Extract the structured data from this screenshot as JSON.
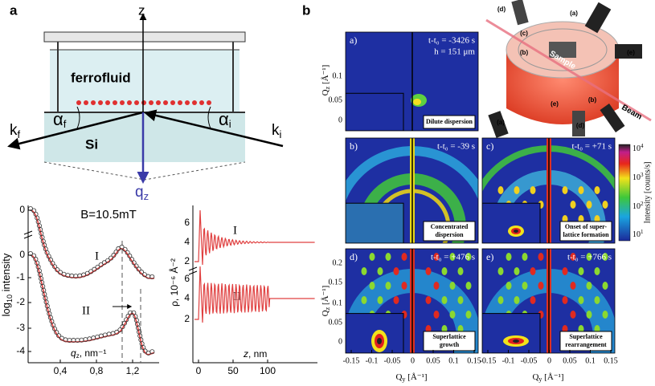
{
  "panel_a": {
    "label": "a",
    "z_axis": "z",
    "liquid": "ferrofluid",
    "substrate": "Si",
    "k_f": {
      "main": "k",
      "sub": "f"
    },
    "alpha_f": {
      "main": "α",
      "sub": "f"
    },
    "alpha_i": {
      "main": "α",
      "sub": "i"
    },
    "k_i": {
      "main": "k",
      "sub": "i"
    },
    "q_z": {
      "main": "q",
      "sub": "z"
    }
  },
  "reflectivity": {
    "title": "B=10.5mT",
    "y_label": {
      "main": "log",
      "sub": "10",
      "rest": " intensity"
    },
    "x_label": {
      "main": "q",
      "sub": "z",
      "rest": ", nm⁻¹"
    },
    "yticks": [
      "0",
      "0",
      "-1",
      "-2",
      "-3",
      "-4"
    ],
    "xticks": [
      "0,4",
      "0,8",
      "1,2"
    ],
    "curves": [
      "I",
      "II"
    ]
  },
  "sld": {
    "y_label": "ρ, 10⁻⁶ Å⁻²",
    "x_label": {
      "main": "z",
      "rest": ", nm"
    },
    "yticks_top": [
      "6",
      "4",
      "2"
    ],
    "yticks_bottom": [
      "6",
      "4",
      "2"
    ],
    "xticks": [
      "0",
      "50",
      "100"
    ],
    "curves": [
      "I",
      "II"
    ]
  },
  "panel_b": {
    "label": "b",
    "qz_label": {
      "main": "Q",
      "sub": "z",
      "rest": " [Å⁻¹]"
    },
    "qy_label": {
      "main": "Q",
      "sub": "y",
      "rest": " [Å⁻¹]"
    },
    "qz_ticks_top": [
      "0.1",
      "0.05",
      "0"
    ],
    "qz_ticks_bottom": [
      "0.2",
      "0.15",
      "0.1",
      "0.05",
      "0"
    ],
    "qy_ticks": [
      "-0.15",
      "-0.1",
      "-0.05",
      "0",
      "0.05",
      "0.1",
      "0.15"
    ],
    "panels": [
      {
        "tag": "a)",
        "time": "t-t₀ = -3426 s",
        "extra": "h = 151 μm",
        "caption": [
          "Dilute dispersion"
        ]
      },
      {
        "tag": "b)",
        "time": "t-t₀ = -39 s",
        "caption": [
          "Concentrated",
          "dispersion"
        ]
      },
      {
        "tag": "c)",
        "time": "t-t₀ = +71 s",
        "caption": [
          "Onset of super-",
          "lattice formation"
        ]
      },
      {
        "tag": "d)",
        "time": "t-t₀ = +476 s",
        "caption": [
          "Superlattice",
          "growth"
        ]
      },
      {
        "tag": "e)",
        "time": "t-t₀ = +766 s",
        "caption": [
          "Superlattice",
          "rearrangement"
        ]
      }
    ],
    "colorbar": {
      "label": "Intensity [counts/s]",
      "ticks": [
        {
          "base": "10",
          "exp": "4"
        },
        {
          "base": "10",
          "exp": "3"
        },
        {
          "base": "10",
          "exp": "2"
        },
        {
          "base": "10",
          "exp": "1"
        }
      ]
    },
    "photo": {
      "labels": [
        "(d)",
        "(a)",
        "(c)",
        "(b)",
        "(e)",
        "(e)",
        "(b)",
        "(a)",
        "(d)"
      ],
      "sample": "Sample",
      "beam": "Beam"
    }
  }
}
